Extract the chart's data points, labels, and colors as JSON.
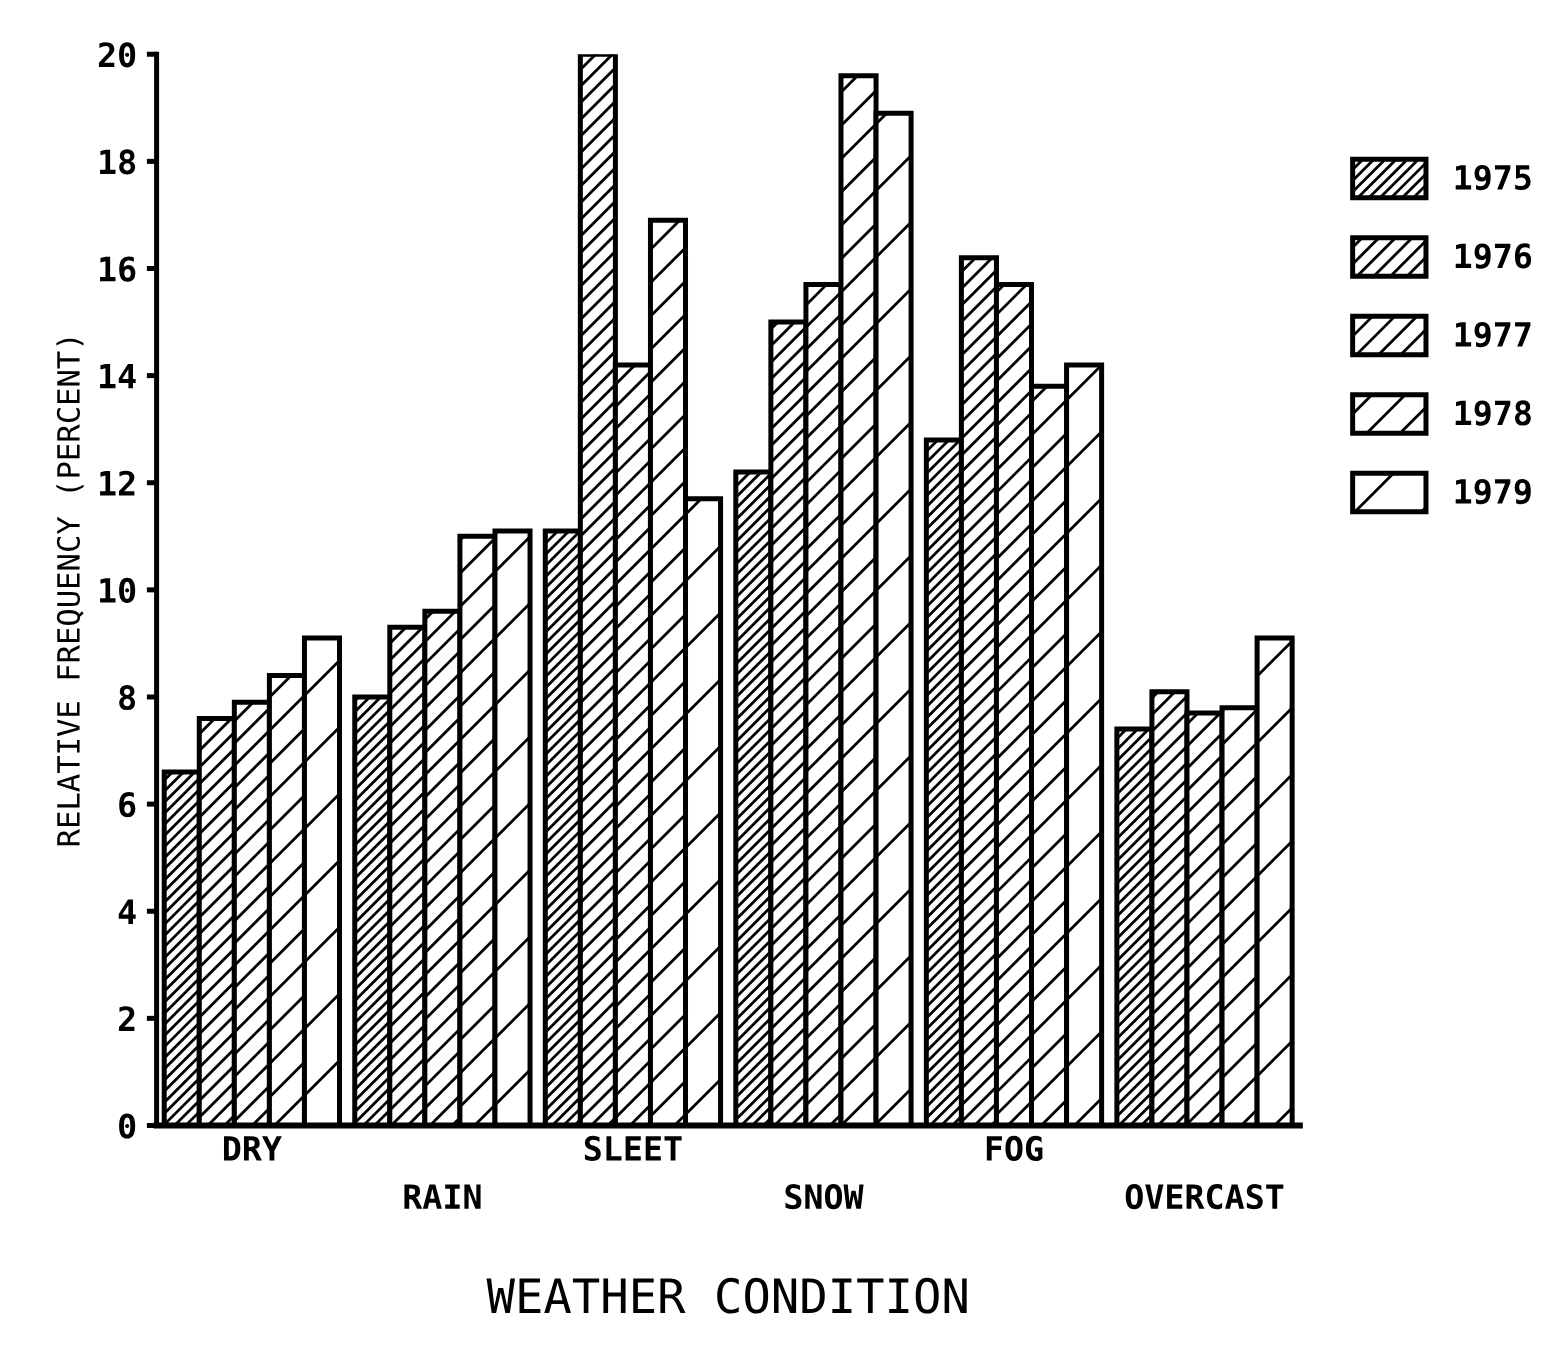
{
  "chart_data": {
    "type": "bar",
    "xlabel": "WEATHER CONDITION",
    "ylabel": "RELATIVE FREQUENCY (PERCENT)",
    "categories": [
      "DRY",
      "RAIN",
      "SLEET",
      "SNOW",
      "FOG",
      "OVERCAST"
    ],
    "series": [
      {
        "name": "1975",
        "color": "#000000",
        "values": [
          6.6,
          8.0,
          11.1,
          12.2,
          12.8,
          7.4
        ]
      },
      {
        "name": "1976",
        "color": "#000000",
        "values": [
          7.6,
          9.3,
          20.0,
          15.0,
          16.2,
          8.1
        ]
      },
      {
        "name": "1977",
        "color": "#000000",
        "values": [
          7.9,
          9.6,
          14.2,
          15.7,
          15.7,
          7.7
        ]
      },
      {
        "name": "1978",
        "color": "#000000",
        "values": [
          8.4,
          11.0,
          16.9,
          19.6,
          13.8,
          7.8
        ]
      },
      {
        "name": "1979",
        "color": "#000000",
        "values": [
          9.1,
          11.1,
          11.7,
          18.9,
          14.2,
          9.1
        ]
      }
    ],
    "ylim": [
      0,
      20
    ],
    "yticks": [
      0,
      2,
      4,
      6,
      8,
      10,
      12,
      14,
      16,
      18,
      20
    ],
    "grid": false,
    "legend": "right"
  }
}
